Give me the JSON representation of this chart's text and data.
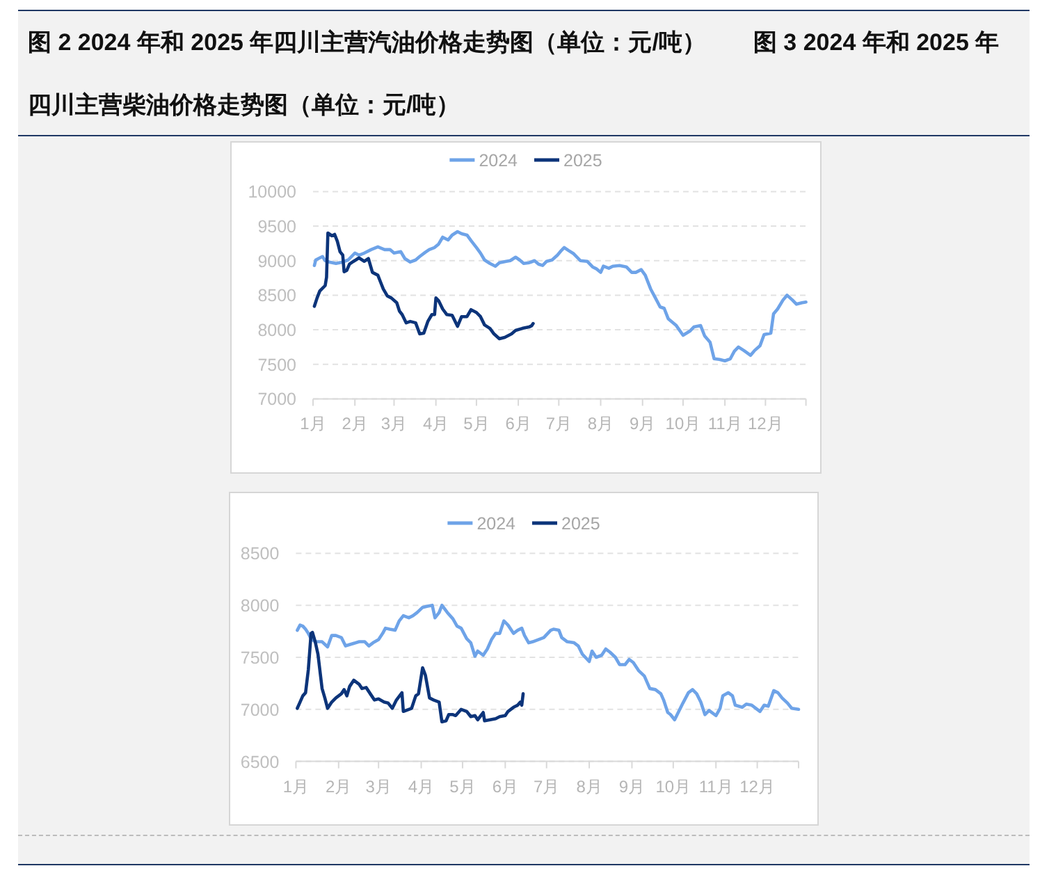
{
  "chart_data": [
    {
      "type": "other",
      "title": "图 2 2024 年和 2025 年四川主营汽油价格走势图（单位：元/吨）　　图 3 2024 年和 2025 年四川主营柴油价格走势图（单位：元/吨）"
    },
    {
      "type": "line",
      "series": [
        {
          "name": "2024",
          "color": "#6ea3e8",
          "x": [
            "--01-02",
            "--01-03",
            "--01-06",
            "--01-08",
            "--01-10",
            "--01-13",
            "--01-18",
            "--01-23",
            "--01-27",
            "--02-01",
            "--02-04",
            "--02-08",
            "--02-13",
            "--02-18",
            "--02-23",
            "--02-27",
            "--03-01",
            "--03-06",
            "--03-09",
            "--03-13",
            "--03-17",
            "--03-20",
            "--03-24",
            "--03-27",
            "--03-31",
            "--04-03",
            "--04-06",
            "--04-10",
            "--04-13",
            "--04-17",
            "--04-20",
            "--04-24",
            "--04-27",
            "--05-01",
            "--05-04",
            "--05-07",
            "--05-11",
            "--05-15",
            "--05-18",
            "--05-23",
            "--05-26",
            "--05-30",
            "--06-02",
            "--06-05",
            "--06-09",
            "--06-13",
            "--06-16",
            "--06-19",
            "--06-22",
            "--06-26",
            "--06-30",
            "--07-03",
            "--07-05",
            "--07-08",
            "--07-12",
            "--07-17",
            "--07-22",
            "--07-26",
            "--07-29",
            "--08-01",
            "--08-03",
            "--08-07",
            "--08-10",
            "--08-15",
            "--08-20",
            "--08-24",
            "--08-27",
            "--08-31",
            "--09-03",
            "--09-07",
            "--09-10",
            "--09-14",
            "--09-17",
            "--09-20",
            "--09-26",
            "--10-01",
            "--10-06",
            "--10-09",
            "--10-14",
            "--10-17",
            "--10-21",
            "--10-24",
            "--10-28",
            "--11-01",
            "--11-05",
            "--11-08",
            "--11-11",
            "--11-15",
            "--11-20",
            "--11-23",
            "--11-27",
            "--11-30",
            "--12-05",
            "--12-07",
            "--12-10",
            "--12-14",
            "--12-17",
            "--12-21",
            "--12-24",
            "--12-28",
            "--12-31"
          ],
          "values": [
            8930,
            9010,
            9040,
            9060,
            9000,
            8980,
            8960,
            8980,
            9010,
            9110,
            9080,
            9110,
            9160,
            9200,
            9160,
            9160,
            9110,
            9130,
            9030,
            8980,
            9010,
            9060,
            9120,
            9160,
            9190,
            9240,
            9340,
            9300,
            9370,
            9420,
            9390,
            9370,
            9290,
            9190,
            9110,
            9010,
            8960,
            8920,
            8970,
            8990,
            9000,
            9050,
            9010,
            8960,
            8970,
            9000,
            8950,
            8930,
            8990,
            9010,
            9080,
            9150,
            9190,
            9150,
            9100,
            9000,
            8990,
            8910,
            8880,
            8830,
            8920,
            8890,
            8920,
            8930,
            8910,
            8830,
            8830,
            8870,
            8790,
            8590,
            8480,
            8330,
            8310,
            8160,
            8060,
            7920,
            7980,
            8040,
            8060,
            7910,
            7820,
            7580,
            7570,
            7550,
            7580,
            7690,
            7750,
            7700,
            7630,
            7700,
            7770,
            7930,
            7950,
            8230,
            8300,
            8430,
            8500,
            8430,
            8370,
            8390,
            8400
          ]
        },
        {
          "name": "2025",
          "color": "#0c347a",
          "x": [
            "--01-02",
            "--01-04",
            "--01-06",
            "--01-10",
            "--01-11",
            "--01-12",
            "--01-15",
            "--01-17",
            "--01-19",
            "--01-21",
            "--01-23",
            "--01-24",
            "--01-26",
            "--01-28",
            "--01-31",
            "--02-04",
            "--02-08",
            "--02-11",
            "--02-14",
            "--02-18",
            "--02-20",
            "--02-22",
            "--02-25",
            "--02-28",
            "--03-03",
            "--03-05",
            "--03-07",
            "--03-10",
            "--03-13",
            "--03-17",
            "--03-20",
            "--03-23",
            "--03-26",
            "--03-29",
            "--03-31",
            "--04-01",
            "--04-03",
            "--04-06",
            "--04-09",
            "--04-13",
            "--04-17",
            "--04-20",
            "--04-24",
            "--04-27",
            "--05-01",
            "--05-04",
            "--05-07",
            "--05-11",
            "--05-14",
            "--05-18",
            "--05-22",
            "--05-25",
            "--05-27",
            "--05-30",
            "--06-04",
            "--06-09",
            "--06-11",
            "--06-12"
          ],
          "values": [
            8340,
            8460,
            8560,
            8640,
            8760,
            9400,
            9360,
            9380,
            9280,
            9130,
            9080,
            8840,
            8860,
            8950,
            8990,
            9040,
            8990,
            9030,
            8830,
            8790,
            8690,
            8590,
            8490,
            8460,
            8390,
            8270,
            8220,
            8100,
            8120,
            8100,
            7940,
            7950,
            8120,
            8220,
            8220,
            8460,
            8420,
            8300,
            8220,
            8210,
            8050,
            8190,
            8190,
            8290,
            8250,
            8190,
            8070,
            8020,
            7940,
            7870,
            7890,
            7920,
            7940,
            7990,
            8020,
            8040,
            8060,
            8090
          ]
        }
      ],
      "xlim": [
        "--01-01",
        "--12-31"
      ],
      "xticks": [
        {
          "value": "--01-01",
          "label": "1月"
        },
        {
          "value": "--02-01",
          "label": "2月"
        },
        {
          "value": "--03-01",
          "label": "3月"
        },
        {
          "value": "--04-01",
          "label": "4月"
        },
        {
          "value": "--05-01",
          "label": "5月"
        },
        {
          "value": "--06-01",
          "label": "6月"
        },
        {
          "value": "--07-01",
          "label": "7月"
        },
        {
          "value": "--08-01",
          "label": "8月"
        },
        {
          "value": "--09-01",
          "label": "9月"
        },
        {
          "value": "--10-01",
          "label": "10月"
        },
        {
          "value": "--11-01",
          "label": "11月"
        },
        {
          "value": "--12-01",
          "label": "12月"
        },
        {
          "value": "--12-31",
          "label": null
        }
      ],
      "ylim": [
        7000,
        10000
      ],
      "yticks": [
        7000,
        7500,
        8000,
        8500,
        9000,
        9500,
        10000
      ],
      "grid": "y",
      "legend": "top",
      "line_style": "solid"
    },
    {
      "type": "line",
      "series": [
        {
          "name": "2024",
          "color": "#6ea3e8",
          "x": [
            "--01-02",
            "--01-04",
            "--01-06",
            "--01-08",
            "--01-10",
            "--01-12",
            "--01-15",
            "--01-20",
            "--01-24",
            "--01-27",
            "--01-30",
            "--02-03",
            "--02-06",
            "--02-11",
            "--02-16",
            "--02-20",
            "--02-23",
            "--02-26",
            "--03-01",
            "--03-04",
            "--03-06",
            "--03-09",
            "--03-13",
            "--03-16",
            "--03-19",
            "--03-23",
            "--03-26",
            "--03-29",
            "--04-02",
            "--04-05",
            "--04-09",
            "--04-11",
            "--04-14",
            "--04-16",
            "--04-20",
            "--04-24",
            "--04-27",
            "--04-30",
            "--05-04",
            "--05-07",
            "--05-10",
            "--05-12",
            "--05-16",
            "--05-19",
            "--05-22",
            "--05-25",
            "--05-28",
            "--05-31",
            "--06-03",
            "--06-07",
            "--06-10",
            "--06-13",
            "--06-15",
            "--06-18",
            "--06-21",
            "--06-25",
            "--06-29",
            "--07-04",
            "--07-06",
            "--07-10",
            "--07-12",
            "--07-16",
            "--07-21",
            "--07-24",
            "--07-27",
            "--08-01",
            "--08-03",
            "--08-06",
            "--08-10",
            "--08-13",
            "--08-16",
            "--08-20",
            "--08-23",
            "--08-27",
            "--08-30",
            "--09-02",
            "--09-06",
            "--09-10",
            "--09-14",
            "--09-18",
            "--09-22",
            "--09-24",
            "--09-27",
            "--09-29",
            "--10-02",
            "--10-05",
            "--10-08",
            "--10-12",
            "--10-15",
            "--10-18",
            "--10-21",
            "--10-24",
            "--10-27",
            "--11-01",
            "--11-04",
            "--11-06",
            "--11-10",
            "--11-13",
            "--11-15",
            "--11-20",
            "--11-23",
            "--11-27",
            "--12-01",
            "--12-03",
            "--12-06",
            "--12-09",
            "--12-13",
            "--12-16",
            "--12-19",
            "--12-23",
            "--12-26",
            "--12-31"
          ],
          "values": [
            7760,
            7810,
            7800,
            7770,
            7730,
            7680,
            7650,
            7650,
            7600,
            7710,
            7710,
            7690,
            7610,
            7630,
            7650,
            7650,
            7610,
            7640,
            7670,
            7730,
            7780,
            7770,
            7760,
            7850,
            7900,
            7880,
            7900,
            7930,
            7980,
            7990,
            8000,
            7880,
            7930,
            8000,
            7930,
            7870,
            7800,
            7780,
            7680,
            7640,
            7510,
            7560,
            7520,
            7580,
            7670,
            7730,
            7730,
            7850,
            7810,
            7730,
            7760,
            7780,
            7710,
            7640,
            7650,
            7670,
            7690,
            7760,
            7770,
            7760,
            7690,
            7650,
            7640,
            7610,
            7530,
            7460,
            7560,
            7500,
            7520,
            7580,
            7550,
            7500,
            7430,
            7430,
            7480,
            7450,
            7370,
            7320,
            7200,
            7190,
            7150,
            7090,
            6970,
            6950,
            6900,
            6980,
            7060,
            7160,
            7190,
            7150,
            7070,
            6950,
            6990,
            6940,
            7010,
            7130,
            7160,
            7130,
            7040,
            7020,
            7050,
            7040,
            7000,
            6980,
            7040,
            7030,
            7180,
            7160,
            7110,
            7060,
            7010,
            7000
          ]
        },
        {
          "name": "2025",
          "color": "#0c347a",
          "x": [
            "--01-02",
            "--01-04",
            "--01-06",
            "--01-08",
            "--01-10",
            "--01-12",
            "--01-13",
            "--01-15",
            "--01-17",
            "--01-19",
            "--01-20",
            "--01-22",
            "--01-24",
            "--01-27",
            "--01-30",
            "--02-03",
            "--02-05",
            "--02-07",
            "--02-09",
            "--02-12",
            "--02-16",
            "--02-18",
            "--02-21",
            "--02-25",
            "--02-27",
            "--03-01",
            "--03-05",
            "--03-08",
            "--03-11",
            "--03-14",
            "--03-18",
            "--03-19",
            "--03-23",
            "--03-25",
            "--03-28",
            "--03-30",
            "--04-02",
            "--04-04",
            "--04-07",
            "--04-10",
            "--04-14",
            "--04-16",
            "--04-19",
            "--04-21",
            "--04-24",
            "--04-26",
            "--04-30",
            "--05-04",
            "--05-07",
            "--05-10",
            "--05-12",
            "--05-16",
            "--05-17",
            "--05-21",
            "--05-25",
            "--05-28",
            "--06-01",
            "--06-03",
            "--06-07",
            "--06-10",
            "--06-12",
            "--06-13",
            "--06-14"
          ],
          "values": [
            7010,
            7070,
            7130,
            7160,
            7380,
            7730,
            7740,
            7650,
            7530,
            7310,
            7200,
            7110,
            7010,
            7070,
            7110,
            7150,
            7190,
            7130,
            7220,
            7280,
            7240,
            7200,
            7210,
            7130,
            7090,
            7100,
            7070,
            7060,
            7010,
            7090,
            7160,
            6980,
            7000,
            7010,
            7130,
            7150,
            7400,
            7330,
            7110,
            7090,
            7070,
            6880,
            6890,
            6950,
            6950,
            6940,
            7000,
            6980,
            6930,
            6940,
            6900,
            6970,
            6890,
            6900,
            6910,
            6930,
            6940,
            6980,
            7020,
            7040,
            7070,
            7040,
            7150
          ]
        }
      ],
      "xlim": [
        "--01-01",
        "--12-31"
      ],
      "xticks": [
        {
          "value": "--01-01",
          "label": "1月"
        },
        {
          "value": "--02-01",
          "label": "2月"
        },
        {
          "value": "--03-01",
          "label": "3月"
        },
        {
          "value": "--04-01",
          "label": "4月"
        },
        {
          "value": "--05-01",
          "label": "5月"
        },
        {
          "value": "--06-01",
          "label": "6月"
        },
        {
          "value": "--07-01",
          "label": "7月"
        },
        {
          "value": "--08-01",
          "label": "8月"
        },
        {
          "value": "--09-01",
          "label": "9月"
        },
        {
          "value": "--10-01",
          "label": "10月"
        },
        {
          "value": "--11-01",
          "label": "11月"
        },
        {
          "value": "--12-01",
          "label": "12月"
        },
        {
          "value": "--12-31",
          "label": null
        }
      ],
      "ylim": [
        6500,
        8500
      ],
      "yticks": [
        6500,
        7000,
        7500,
        8000,
        8500
      ],
      "grid": "y",
      "legend": "top",
      "line_style": "solid"
    }
  ]
}
